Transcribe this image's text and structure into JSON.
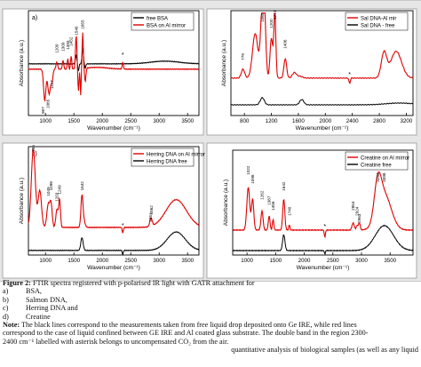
{
  "chart_data": [
    {
      "panel": "a)",
      "type": "line",
      "xlabel": "Wavenumber (cm⁻¹)",
      "ylabel": "Absorbance (a.u.)",
      "xlim": [
        700,
        3700
      ],
      "ticks": [
        1000,
        1500,
        2000,
        2500,
        3000,
        3500
      ],
      "legend_position": "top-right",
      "series": [
        {
          "name": "free BSA",
          "color": "#000000"
        },
        {
          "name": "BSA on Al mirror",
          "color": "#e00000"
        }
      ],
      "annotations": [
        "1065",
        "1200",
        "1309",
        "1393",
        "1452",
        "1540",
        "1655",
        "987",
        "1117",
        "*"
      ]
    },
    {
      "panel": "b)",
      "type": "line",
      "xlabel": "Wavenumber (cm⁻¹)",
      "ylabel": "Absorbance (a.u.)",
      "xlim": [
        600,
        3300
      ],
      "ticks": [
        800,
        1200,
        1600,
        2000,
        2400,
        2800,
        3200
      ],
      "legend_position": "top-right",
      "series": [
        {
          "name": "Sal DNA-Al mir",
          "color": "#e00000"
        },
        {
          "name": "Sal DNA - free",
          "color": "#000000"
        }
      ],
      "annotations": [
        "779",
        "1065",
        "1406",
        "1200",
        "1251",
        "*"
      ]
    },
    {
      "panel": "c)",
      "type": "line",
      "xlabel": "Wavenumber (cm⁻¹)",
      "ylabel": "Absorbance (a.u.)",
      "xlim": [
        700,
        3700
      ],
      "ticks": [
        1000,
        1500,
        2000,
        2500,
        3000,
        3500
      ],
      "legend_position": "top-right",
      "series": [
        {
          "name": "Herring DNA on Al mirror",
          "color": "#e00000"
        },
        {
          "name": "Herring DNA free",
          "color": "#000000"
        }
      ],
      "annotations": [
        "786",
        "1049",
        "1098",
        "1203",
        "1249",
        "1642",
        "2862",
        "2851",
        "*"
      ]
    },
    {
      "panel": "d)",
      "type": "line",
      "xlabel": "Wavenumber (cm⁻¹)",
      "ylabel": "Absorbance (a.u.)",
      "xlim": [
        750,
        3900
      ],
      "ticks": [
        1000,
        1500,
        2000,
        2500,
        3000,
        3500
      ],
      "legend_position": "top-right",
      "series": [
        {
          "name": "Creatine on Al mirror",
          "color": "#e00000"
        },
        {
          "name": "Creatine free",
          "color": "#000000"
        }
      ],
      "annotations": [
        "1022",
        "1098",
        "1262",
        "1387",
        "1456",
        "1642",
        "1740",
        "2854",
        "2924",
        "2963",
        "3284",
        "3398",
        "*"
      ]
    }
  ],
  "caption": {
    "title_bold": "Figure 2:",
    "title_rest": " FTIR spectra registered with p-polarised IR light with GATR attachment for",
    "items": [
      {
        "key": "a)",
        "text": "BSA,"
      },
      {
        "key": "b)",
        "text": "Salmon DNA,"
      },
      {
        "key": "c)",
        "text": "Herring DNA and"
      },
      {
        "key": "d)",
        "text": "Creatine"
      }
    ],
    "note_bold": "Note:",
    "note_line1": " The black lines correspond to the measurements taken from free liquid drop deposited onto Ge IRE, while red lines",
    "note_line2": "correspond to the case of liquid confined between GE IRE and Al coated glass substrate. The double band in the region 2300-",
    "note_line3": "2400 cm⁻¹ labelled with asterisk belongs to uncompensated CO₂ from the air.",
    "trailing": "quantitative analysis of biological samples (as well as any liquid"
  }
}
